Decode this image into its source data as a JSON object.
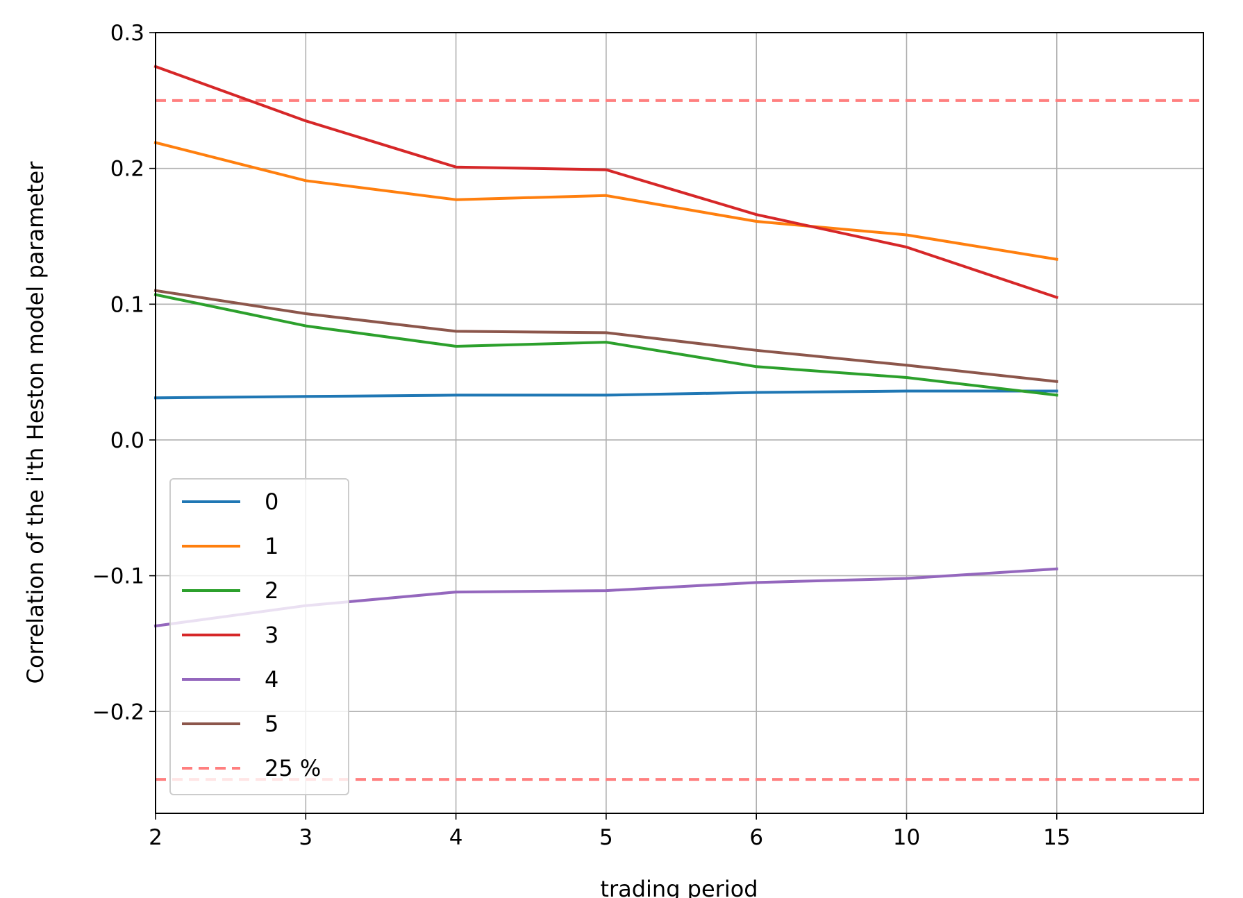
{
  "chart_data": {
    "type": "line",
    "xlabel": "trading period",
    "ylabel": "Correlation of the i'th Heston model parameter",
    "categories": [
      "2",
      "3",
      "4",
      "5",
      "6",
      "10",
      "15"
    ],
    "ylim": [
      -0.275,
      0.3
    ],
    "yticks": [
      -0.2,
      -0.1,
      0.0,
      0.1,
      0.2,
      0.3
    ],
    "ytick_labels": [
      "−0.2",
      "−0.1",
      "0.0",
      "0.1",
      "0.2",
      "0.3"
    ],
    "grid": true,
    "legend_position": "lower-left",
    "series": [
      {
        "name": "0",
        "color": "#1f77b4",
        "values": [
          0.031,
          0.032,
          0.033,
          0.033,
          0.035,
          0.036,
          0.036
        ]
      },
      {
        "name": "1",
        "color": "#ff7f0e",
        "values": [
          0.219,
          0.191,
          0.177,
          0.18,
          0.161,
          0.151,
          0.133
        ]
      },
      {
        "name": "2",
        "color": "#2ca02c",
        "values": [
          0.107,
          0.084,
          0.069,
          0.072,
          0.054,
          0.046,
          0.033
        ]
      },
      {
        "name": "3",
        "color": "#d62728",
        "values": [
          0.275,
          0.235,
          0.201,
          0.199,
          0.166,
          0.142,
          0.105
        ]
      },
      {
        "name": "4",
        "color": "#9467bd",
        "values": [
          -0.137,
          -0.122,
          -0.112,
          -0.111,
          -0.105,
          -0.102,
          -0.095
        ]
      },
      {
        "name": "5",
        "color": "#8c564b",
        "values": [
          0.11,
          0.093,
          0.08,
          0.079,
          0.066,
          0.055,
          0.043
        ]
      }
    ],
    "reference_lines": {
      "name": "25 %",
      "color": "#ff7f7f",
      "values": [
        0.25,
        -0.25
      ]
    }
  }
}
